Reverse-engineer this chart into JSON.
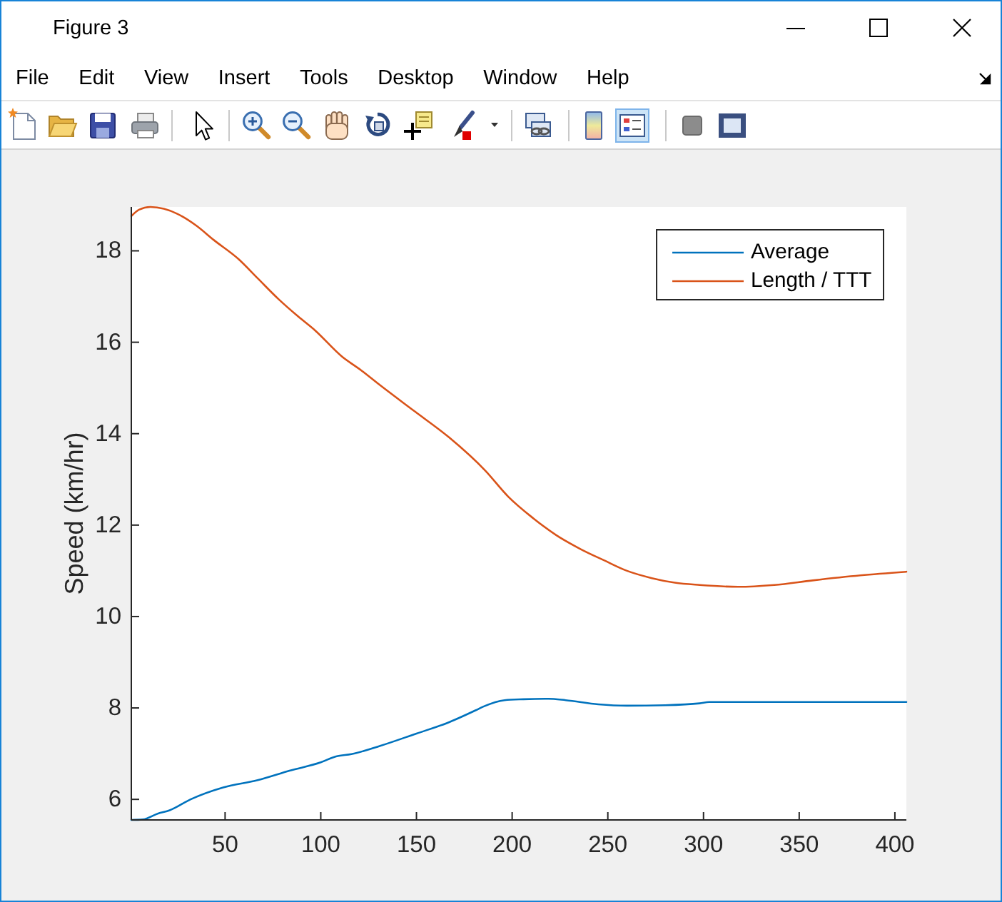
{
  "chart_data": {
    "type": "line",
    "annotations": [
      "Figure 3",
      "File",
      "Edit",
      "View",
      "Insert",
      "Tools",
      "Desktop",
      "Window",
      "Help"
    ],
    "ylabel": "Speed (km/hr)",
    "xlim": [
      1,
      406
    ],
    "xticks": [
      50,
      100,
      150,
      200,
      250,
      300,
      350,
      400
    ],
    "ylim": [
      5.55,
      18.96
    ],
    "yticks": [
      6,
      8,
      10,
      12,
      14,
      16,
      18
    ],
    "legend": "top right",
    "series": [
      {
        "name": "Average",
        "color": "#0072bd",
        "x": [
          1,
          7,
          15,
          21,
          32,
          49,
          67,
          84,
          100,
          108,
          116,
          131,
          150,
          166,
          181,
          185,
          196,
          206,
          219,
          228,
          245,
          260,
          280,
          298,
          303,
          406
        ],
        "values": [
          5.55,
          5.56,
          5.69,
          5.76,
          6.0,
          6.26,
          6.42,
          6.63,
          6.81,
          6.94,
          6.99,
          7.17,
          7.44,
          7.67,
          7.95,
          8.03,
          8.17,
          8.19,
          8.2,
          8.17,
          8.08,
          8.05,
          8.06,
          8.1,
          8.13,
          8.13
        ]
      },
      {
        "name": "Length / TTT",
        "color": "#d95319",
        "x": [
          1,
          5,
          11,
          18,
          25,
          35,
          44,
          57,
          67,
          78,
          88,
          97,
          111,
          121,
          131,
          149,
          167,
          186,
          198,
          211,
          223,
          236,
          248,
          260,
          273,
          285,
          298,
          318,
          337,
          357,
          382,
          406
        ],
        "values": [
          18.76,
          18.9,
          18.96,
          18.92,
          18.81,
          18.55,
          18.24,
          17.82,
          17.4,
          16.94,
          16.57,
          16.26,
          15.69,
          15.39,
          15.06,
          14.49,
          13.92,
          13.19,
          12.62,
          12.15,
          11.78,
          11.47,
          11.23,
          11.0,
          10.84,
          10.74,
          10.69,
          10.65,
          10.69,
          10.79,
          10.9,
          10.98
        ]
      }
    ]
  }
}
